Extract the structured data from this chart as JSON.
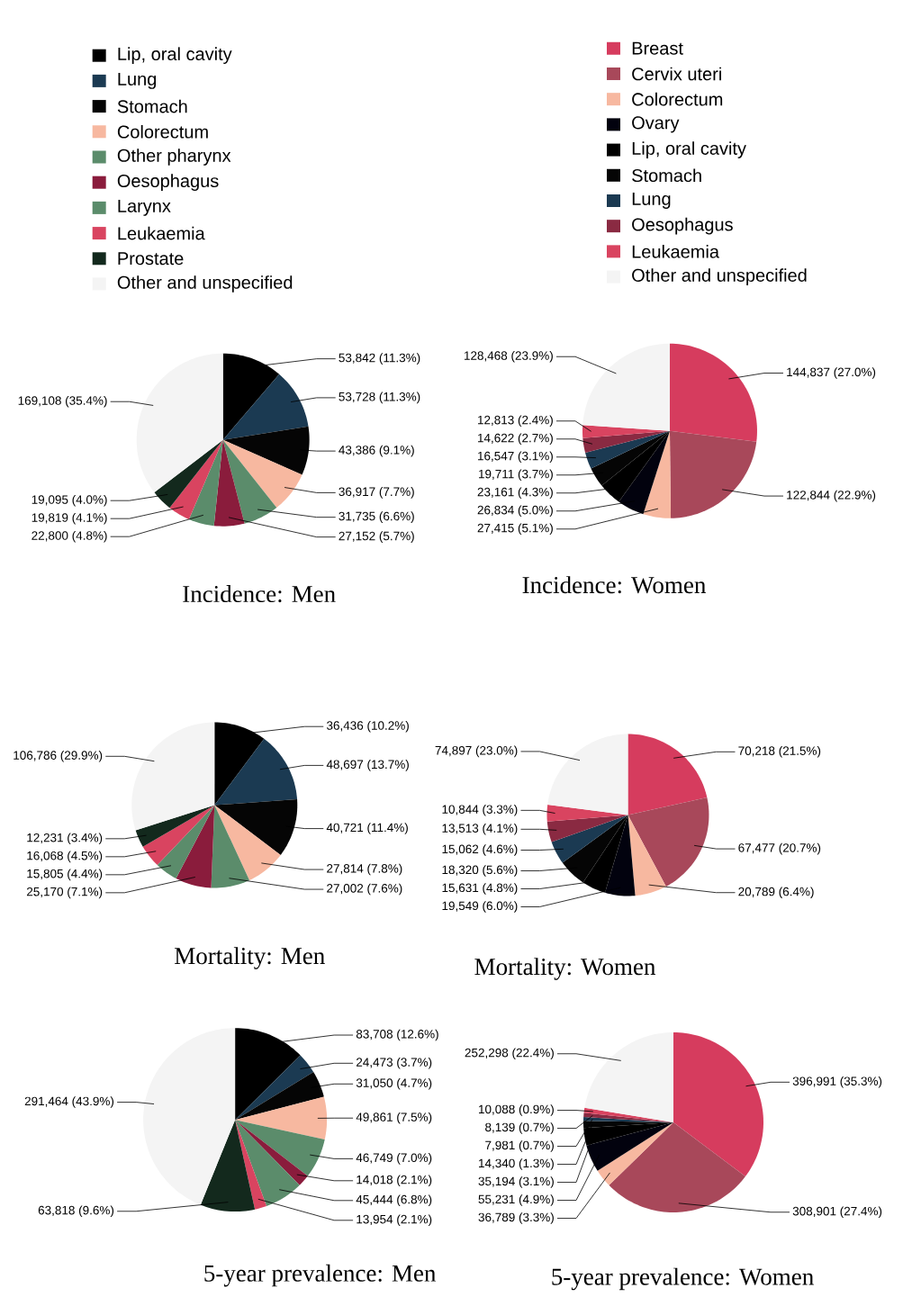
{
  "chart_data": [
    {
      "type": "pie",
      "title": "Incidence: Men",
      "legend": "top",
      "categories": [
        "Lip, oral cavity",
        "Lung",
        "Stomach",
        "Colorectum",
        "Other pharynx",
        "Oesophagus",
        "Larynx",
        "Leukaemia",
        "Prostate",
        "Other and unspecified"
      ],
      "values": [
        53842,
        53728,
        43386,
        36917,
        31735,
        27152,
        22800,
        19819,
        19095,
        169108
      ],
      "value_labels": [
        "53,842 (11.3%)",
        "53,728 (11.3%)",
        "43,386 (9.1%)",
        "36,917 (7.7%)",
        "31,735 (6.6%)",
        "27,152 (5.7%)",
        "22,800 (4.8%)",
        "19,819 (4.1%)",
        "19,095 (4.0%)",
        "169,108 (35.4%)"
      ],
      "colors": [
        "#000000",
        "#1b3a52",
        "#050505",
        "#f7b8a0",
        "#5b8c6b",
        "#8a1c3c",
        "#5b8c6b",
        "#d94460",
        "#13291d",
        "#f4f4f4"
      ]
    },
    {
      "type": "pie",
      "title": "Incidence: Women",
      "legend": "top",
      "categories": [
        "Breast",
        "Cervix uteri",
        "Colorectum",
        "Ovary",
        "Lip, oral cavity",
        "Stomach",
        "Lung",
        "Oesophagus",
        "Leukaemia",
        "Other and unspecified"
      ],
      "values": [
        144837,
        122844,
        27415,
        26834,
        23161,
        19711,
        16547,
        14622,
        12813,
        128468
      ],
      "value_labels": [
        "144,837 (27.0%)",
        "122,844 (22.9%)",
        "27,415 (5.1%)",
        "26,834 (5.0%)",
        "23,161 (4.3%)",
        "19,711 (3.7%)",
        "16,547 (3.1%)",
        "14,622 (2.7%)",
        "12,813 (2.4%)",
        "128,468 (23.9%)"
      ],
      "colors": [
        "#d63c5e",
        "#a8485a",
        "#f7b8a0",
        "#02020e",
        "#000000",
        "#050505",
        "#1b3a52",
        "#8a2a42",
        "#d94460",
        "#f4f4f4"
      ]
    },
    {
      "type": "pie",
      "title": "Mortality: Men",
      "categories": [
        null,
        null,
        null,
        null,
        null,
        null,
        null,
        null,
        null,
        null
      ],
      "values": [
        36436,
        48697,
        40721,
        27814,
        27002,
        25170,
        15805,
        16068,
        12231,
        106786
      ],
      "value_labels": [
        "36,436 (10.2%)",
        "48,697 (13.7%)",
        "40,721 (11.4%)",
        "27,814 (7.8%)",
        "27,002 (7.6%)",
        "25,170 (7.1%)",
        "15,805 (4.4%)",
        "16,068 (4.5%)",
        "12,231 (3.4%)",
        "106,786 (29.9%)"
      ],
      "colors": [
        "#000000",
        "#1b3a52",
        "#050505",
        "#f7b8a0",
        "#5b8c6b",
        "#8a1c3c",
        "#5b8c6b",
        "#d94460",
        "#13291d",
        "#f4f4f4"
      ]
    },
    {
      "type": "pie",
      "title": "Mortality: Women",
      "categories": [
        null,
        null,
        null,
        null,
        null,
        null,
        null,
        null,
        null,
        null
      ],
      "values": [
        70218,
        67477,
        20789,
        19549,
        15631,
        18320,
        15062,
        13513,
        10844,
        74897
      ],
      "value_labels": [
        "70,218 (21.5%)",
        "67,477 (20.7%)",
        "20,789 (6.4%)",
        "19,549 (6.0%)",
        "15,631 (4.8%)",
        "18,320 (5.6%)",
        "15,062 (4.6%)",
        "13,513 (4.1%)",
        "10,844 (3.3%)",
        "74,897 (23.0%)"
      ],
      "colors": [
        "#d63c5e",
        "#a8485a",
        "#f7b8a0",
        "#02020e",
        "#000000",
        "#050505",
        "#1b3a52",
        "#8a2a42",
        "#d94460",
        "#f4f4f4"
      ]
    },
    {
      "type": "pie",
      "title": "5-year prevalence: Men",
      "categories": [
        null,
        null,
        null,
        null,
        null,
        null,
        null,
        null,
        null,
        null
      ],
      "values": [
        83708,
        24473,
        31050,
        49861,
        46749,
        14018,
        45444,
        13954,
        63818,
        291464
      ],
      "value_labels": [
        "83,708 (12.6%)",
        "24,473 (3.7%)",
        "31,050 (4.7%)",
        "49,861 (7.5%)",
        "46,749 (7.0%)",
        "14,018 (2.1%)",
        "45,444 (6.8%)",
        "13,954 (2.1%)",
        "63,818 (9.6%)",
        "291,464 (43.9%)"
      ],
      "colors": [
        "#000000",
        "#1b3a52",
        "#050505",
        "#f7b8a0",
        "#5b8c6b",
        "#8a1c3c",
        "#5b8c6b",
        "#d94460",
        "#13291d",
        "#f4f4f4"
      ]
    },
    {
      "type": "pie",
      "title": "5-year prevalence: Women",
      "categories": [
        null,
        null,
        null,
        null,
        null,
        null,
        null,
        null,
        null,
        null
      ],
      "values": [
        396991,
        308901,
        36789,
        55231,
        35194,
        14340,
        7981,
        8139,
        10088,
        252298
      ],
      "value_labels": [
        "396,991 (35.3%)",
        "308,901 (27.4%)",
        "36,789 (3.3%)",
        "55,231 (4.9%)",
        "35,194 (3.1%)",
        "14,340 (1.3%)",
        "7,981 (0.7%)",
        "8,139 (0.7%)",
        "10,088 (0.9%)",
        "252,298 (22.4%)"
      ],
      "colors": [
        "#d63c5e",
        "#a8485a",
        "#f7b8a0",
        "#02020e",
        "#000000",
        "#050505",
        "#1b3a52",
        "#8a2a42",
        "#d94460",
        "#f4f4f4"
      ]
    }
  ]
}
